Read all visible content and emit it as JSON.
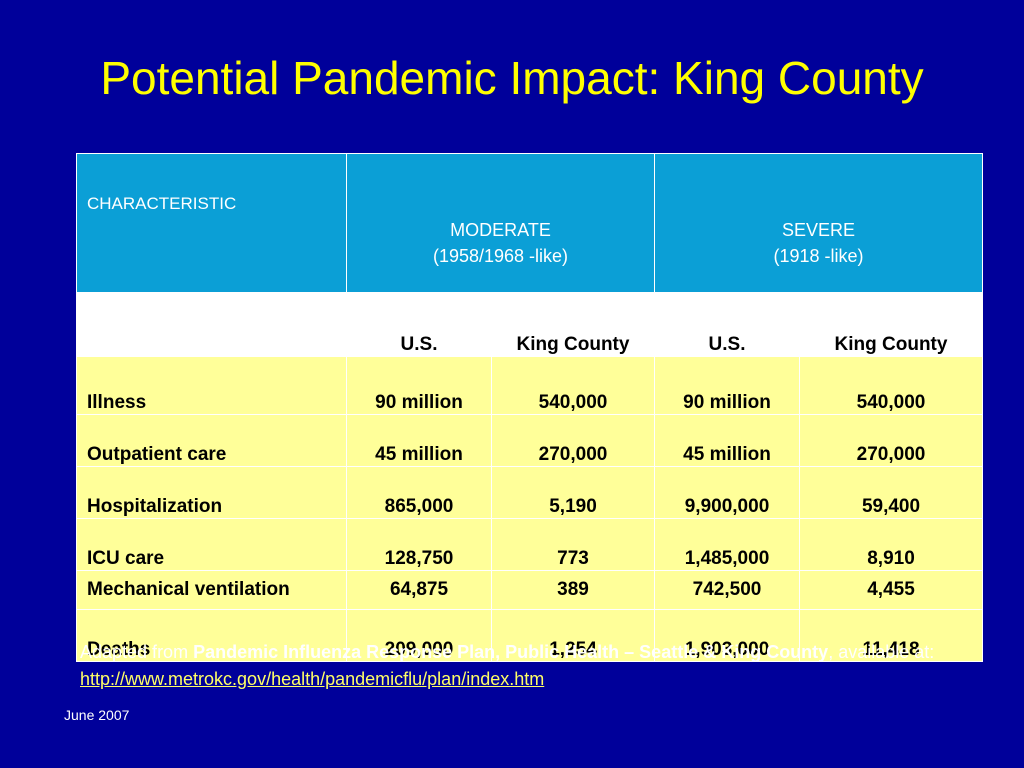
{
  "title": "Potential Pandemic Impact: King County",
  "table": {
    "header": {
      "characteristic": "CHARACTERISTIC",
      "moderate_line1": "MODERATE",
      "moderate_line2": "(1958/1968 -like)",
      "severe_line1": "SEVERE",
      "severe_line2": "(1918 -like)"
    },
    "subheader": [
      "",
      "U.S.",
      "King County",
      "U.S.",
      "King County"
    ],
    "rows": [
      {
        "label": "Illness",
        "mod_us": "90 million",
        "mod_kc": "540,000",
        "sev_us": "90 million",
        "sev_kc": "540,000"
      },
      {
        "label": "Outpatient care",
        "mod_us": "45 million",
        "mod_kc": "270,000",
        "sev_us": "45 million",
        "sev_kc": "270,000"
      },
      {
        "label": "Hospitalization",
        "mod_us": "865,000",
        "mod_kc": "5,190",
        "sev_us": "9,900,000",
        "sev_kc": "59,400"
      },
      {
        "label": "ICU care",
        "mod_us": "128,750",
        "mod_kc": "773",
        "sev_us": "1,485,000",
        "sev_kc": "8,910"
      },
      {
        "label": "Mechanical ventilation",
        "mod_us": "64,875",
        "mod_kc": "389",
        "sev_us": "742,500",
        "sev_kc": "4,455"
      },
      {
        "label": "Deaths",
        "mod_us": "209,000",
        "mod_kc": "1,254",
        "sev_us": "1,903,000",
        "sev_kc": "11,418"
      }
    ]
  },
  "footer": {
    "prefix": "Adapted from ",
    "source_bold": "Pandemic Influenza Response Plan, Public Health – Seattle & King County",
    "middle": ", available at: ",
    "link": "http://www.metrokc.gov/health/pandemicflu/plan/index.htm"
  },
  "date": "June 2007",
  "colors": {
    "background": "#00009a",
    "title": "#ffff00",
    "header_bg": "#0b9fd6",
    "row_bg": "#ffff99",
    "link": "#ffff66"
  }
}
